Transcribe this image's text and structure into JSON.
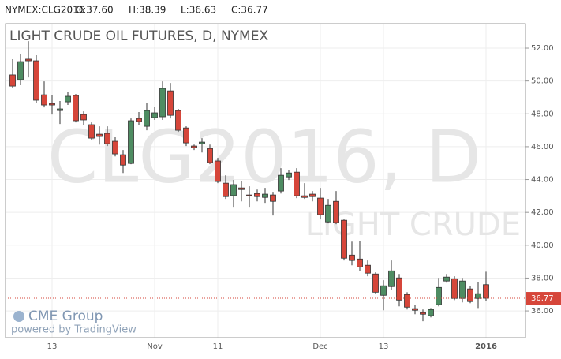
{
  "chart_data": {
    "type": "candlestick",
    "header": {
      "symbol": "NYMEX:CLG2016",
      "open": "O:37.60",
      "high": "H:38.39",
      "low": "L:36.63",
      "close": "C:36.77"
    },
    "title": "LIGHT CRUDE OIL FUTURES, D, NYMEX",
    "watermark": "CLG2016, D",
    "watermark_subtitle": "LIGHT CRUDE",
    "logo": "CME Group",
    "credit": "powered by TradingView",
    "categories": [
      null,
      null,
      null,
      null,
      null,
      "13",
      null,
      null,
      null,
      null,
      null,
      null,
      null,
      null,
      null,
      null,
      null,
      null,
      "Nov",
      null,
      null,
      null,
      null,
      null,
      null,
      null,
      "11",
      null,
      null,
      null,
      null,
      null,
      null,
      null,
      null,
      null,
      null,
      null,
      null,
      "Dec",
      null,
      null,
      null,
      null,
      null,
      null,
      null,
      "13",
      null,
      null,
      null,
      null,
      null,
      null,
      null,
      null,
      null,
      null,
      null,
      null,
      "2016"
    ],
    "up_color": "#4e8c62",
    "down_color": "#d6463a",
    "open": [
      50.37,
      50.08,
      51.33,
      51.23,
      49.16,
      48.63,
      48.2,
      48.73,
      49.12,
      47.96,
      47.34,
      46.76,
      46.81,
      46.33,
      45.51,
      44.98,
      47.72,
      47.24,
      47.77,
      47.82,
      49.4,
      48.2,
      47.14,
      46.04,
      46.18,
      45.89,
      45.13,
      43.78,
      43.02,
      43.49,
      43.06,
      43.15,
      42.91,
      43.06,
      43.3,
      44.16,
      44.45,
      43.01,
      43.11,
      42.87,
      41.42,
      42.67,
      41.52,
      39.4,
      39.16,
      38.78,
      38.25,
      36.95,
      37.48,
      38.01,
      37.0,
      36.14,
      35.9,
      35.71,
      36.38,
      37.82,
      37.96,
      36.76,
      37.34,
      36.76,
      37.6
    ],
    "high": [
      51.33,
      51.66,
      52.43,
      51.57,
      49.98,
      49.12,
      48.78,
      49.31,
      49.21,
      48.15,
      47.48,
      47.24,
      47.24,
      46.57,
      45.8,
      47.72,
      48.11,
      48.68,
      48.44,
      49.98,
      49.88,
      48.3,
      47.24,
      46.13,
      46.52,
      46.13,
      45.32,
      44.26,
      43.97,
      43.88,
      43.59,
      43.39,
      43.49,
      43.25,
      44.69,
      44.6,
      44.69,
      43.78,
      43.3,
      43.49,
      42.82,
      43.3,
      41.57,
      40.22,
      40.27,
      39.07,
      38.35,
      37.87,
      39.07,
      38.25,
      37.14,
      36.38,
      36.09,
      36.18,
      38.01,
      38.25,
      38.11,
      38.01,
      37.53,
      37.77,
      38.39
    ],
    "low": [
      49.55,
      49.74,
      50.22,
      48.68,
      48.39,
      47.96,
      47.38,
      48.54,
      47.48,
      47.34,
      46.42,
      46.13,
      46.04,
      45.41,
      44.4,
      44.93,
      47.34,
      47.0,
      47.63,
      47.63,
      47.72,
      46.9,
      46.04,
      45.8,
      45.65,
      44.93,
      43.78,
      42.82,
      42.34,
      42.67,
      42.34,
      42.67,
      42.58,
      41.81,
      43.15,
      43.97,
      42.87,
      42.82,
      42.67,
      41.57,
      41.33,
      41.28,
      39.07,
      38.78,
      38.44,
      38.11,
      37.05,
      36.04,
      37.29,
      36.28,
      36.09,
      35.8,
      35.37,
      35.61,
      36.28,
      37.72,
      36.66,
      36.52,
      36.47,
      36.18,
      36.63
    ],
    "close": [
      49.69,
      51.18,
      51.23,
      48.83,
      48.54,
      48.54,
      48.3,
      49.07,
      47.58,
      47.63,
      46.52,
      46.62,
      46.18,
      45.56,
      44.88,
      47.58,
      47.53,
      48.2,
      48.06,
      49.55,
      47.91,
      47.0,
      46.23,
      45.94,
      46.28,
      45.03,
      43.88,
      42.96,
      43.69,
      43.39,
      43.01,
      42.96,
      43.11,
      42.67,
      44.26,
      44.4,
      43.01,
      42.91,
      42.96,
      41.86,
      42.43,
      41.38,
      39.21,
      39.07,
      38.68,
      38.3,
      37.14,
      37.53,
      38.44,
      36.66,
      36.23,
      36.04,
      35.8,
      36.09,
      37.43,
      38.06,
      36.76,
      37.82,
      36.57,
      37.05,
      36.77
    ],
    "last_price": 36.77,
    "ylim": [
      34.37,
      53.49
    ],
    "yticks": [
      {
        "value": 36,
        "label": "36.00"
      },
      {
        "value": 38,
        "label": "38.00"
      },
      {
        "value": 40,
        "label": "40.00"
      },
      {
        "value": 42,
        "label": "42.00"
      },
      {
        "value": 44,
        "label": "44.00"
      },
      {
        "value": 46,
        "label": "46.00"
      },
      {
        "value": 48,
        "label": "48.00"
      },
      {
        "value": 50,
        "label": "50.00"
      },
      {
        "value": 52,
        "label": "52.00"
      }
    ],
    "grid": true
  }
}
